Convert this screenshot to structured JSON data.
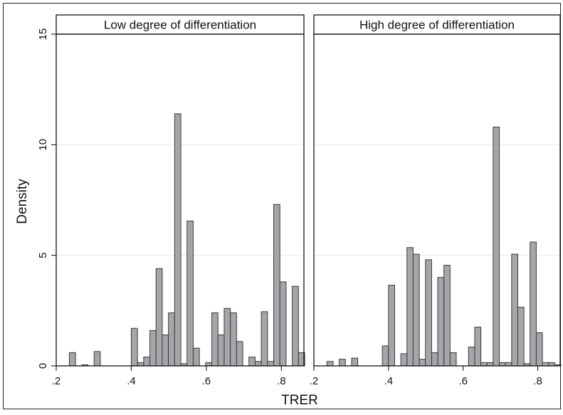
{
  "chart_data": {
    "type": "bar",
    "xlabel": "TRER",
    "ylabel": "Density",
    "ylim": [
      0,
      15
    ],
    "yticks": [
      0,
      5,
      10,
      15
    ],
    "ytick_labels": [
      "0",
      "5",
      "10",
      "15"
    ],
    "xlim": [
      0.2,
      0.86
    ],
    "xticks": [
      0.2,
      0.4,
      0.6,
      0.8
    ],
    "xtick_labels": [
      ".2",
      ".4",
      ".6",
      ".8"
    ],
    "bin_width": 0.0165,
    "grid": "horizontal",
    "colors": {
      "bar_fill": "#a6a6aa",
      "bar_stroke": "#3a3a3a",
      "grid": "#e6e6e6",
      "frame": "#000000"
    },
    "panels": [
      {
        "title": "Low degree of differentiation",
        "bins": [
          {
            "x": 0.235,
            "y": 0.6
          },
          {
            "x": 0.268,
            "y": 0.05
          },
          {
            "x": 0.301,
            "y": 0.65
          },
          {
            "x": 0.4,
            "y": 1.7
          },
          {
            "x": 0.4165,
            "y": 0.15
          },
          {
            "x": 0.433,
            "y": 0.4
          },
          {
            "x": 0.4495,
            "y": 1.6
          },
          {
            "x": 0.466,
            "y": 4.4
          },
          {
            "x": 0.4825,
            "y": 1.4
          },
          {
            "x": 0.499,
            "y": 2.4
          },
          {
            "x": 0.5155,
            "y": 11.4
          },
          {
            "x": 0.532,
            "y": 0.1
          },
          {
            "x": 0.5485,
            "y": 6.55
          },
          {
            "x": 0.565,
            "y": 0.8
          },
          {
            "x": 0.598,
            "y": 0.15
          },
          {
            "x": 0.6145,
            "y": 2.4
          },
          {
            "x": 0.631,
            "y": 1.4
          },
          {
            "x": 0.6475,
            "y": 2.6
          },
          {
            "x": 0.664,
            "y": 2.4
          },
          {
            "x": 0.6805,
            "y": 1.1
          },
          {
            "x": 0.7135,
            "y": 0.4
          },
          {
            "x": 0.73,
            "y": 0.2
          },
          {
            "x": 0.7465,
            "y": 2.45
          },
          {
            "x": 0.763,
            "y": 0.2
          },
          {
            "x": 0.7795,
            "y": 7.3
          },
          {
            "x": 0.796,
            "y": 3.8
          },
          {
            "x": 0.829,
            "y": 3.6
          },
          {
            "x": 0.8455,
            "y": 0.6
          }
        ]
      },
      {
        "title": "High degree of differentiation",
        "bins": [
          {
            "x": 0.235,
            "y": 0.2
          },
          {
            "x": 0.268,
            "y": 0.3
          },
          {
            "x": 0.301,
            "y": 0.35
          },
          {
            "x": 0.3835,
            "y": 0.9
          },
          {
            "x": 0.4,
            "y": 3.65
          },
          {
            "x": 0.433,
            "y": 0.55
          },
          {
            "x": 0.4495,
            "y": 5.35
          },
          {
            "x": 0.466,
            "y": 5.05
          },
          {
            "x": 0.4825,
            "y": 0.3
          },
          {
            "x": 0.499,
            "y": 4.8
          },
          {
            "x": 0.5155,
            "y": 0.6
          },
          {
            "x": 0.532,
            "y": 4.0
          },
          {
            "x": 0.5485,
            "y": 4.55
          },
          {
            "x": 0.565,
            "y": 0.6
          },
          {
            "x": 0.6145,
            "y": 0.85
          },
          {
            "x": 0.631,
            "y": 1.75
          },
          {
            "x": 0.6475,
            "y": 0.15
          },
          {
            "x": 0.664,
            "y": 0.15
          },
          {
            "x": 0.6805,
            "y": 10.8
          },
          {
            "x": 0.697,
            "y": 0.15
          },
          {
            "x": 0.7135,
            "y": 0.15
          },
          {
            "x": 0.73,
            "y": 5.05
          },
          {
            "x": 0.7465,
            "y": 2.65
          },
          {
            "x": 0.763,
            "y": 0.1
          },
          {
            "x": 0.7795,
            "y": 5.6
          },
          {
            "x": 0.796,
            "y": 1.5
          },
          {
            "x": 0.8125,
            "y": 0.15
          },
          {
            "x": 0.829,
            "y": 0.15
          },
          {
            "x": 0.8455,
            "y": 0.05
          }
        ]
      }
    ]
  }
}
